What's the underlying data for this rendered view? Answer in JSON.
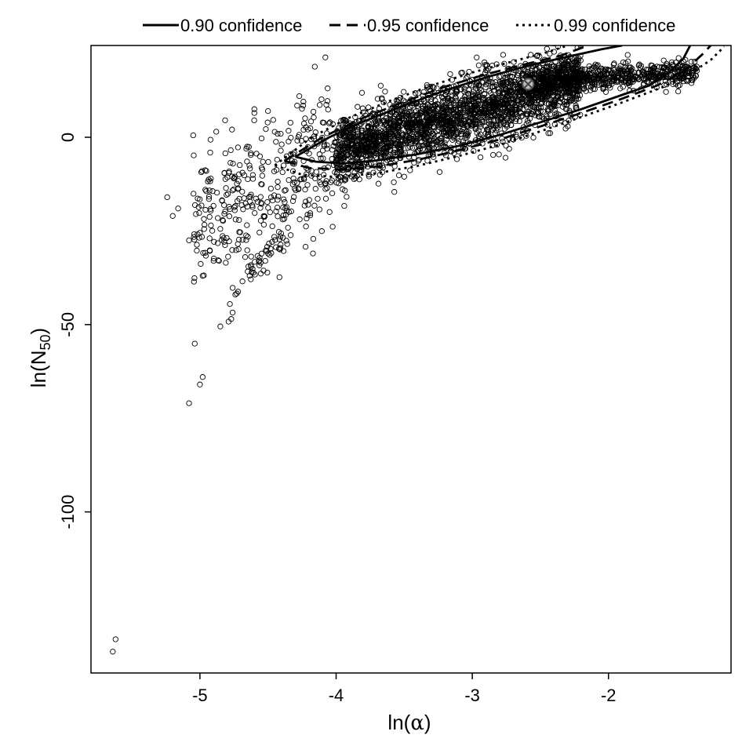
{
  "chart_data": {
    "type": "scatter",
    "title": "",
    "xlabel": "ln(α)",
    "ylabel": "ln(N50)",
    "xlabel_parts": {
      "prefix": "ln(",
      "symbol": "α",
      "suffix": ")"
    },
    "ylabel_parts": {
      "prefix": "ln(",
      "base": "N",
      "subscript": "50",
      "suffix": ")"
    },
    "xlim": [
      -5.8,
      -1.1
    ],
    "ylim": [
      -143,
      24.5
    ],
    "x_ticks": [
      -5,
      -4,
      -3,
      -2
    ],
    "x_tick_labels": [
      "-5",
      "-4",
      "-3",
      "-2"
    ],
    "y_ticks": [
      0,
      -50,
      -100
    ],
    "y_tick_labels": [
      "0",
      "-50",
      "-100"
    ],
    "grid": false,
    "legend_position": "top, outside plot area",
    "legend": [
      {
        "label": "0.90 confidence",
        "linestyle": "solid"
      },
      {
        "label": "0.95 confidence",
        "linestyle": "dashed"
      },
      {
        "label": "0.99 confidence",
        "linestyle": "dotted"
      }
    ],
    "marker_style": "open circle",
    "best_estimate": {
      "x": -2.59,
      "y": 14.2,
      "marker": "circle with cross"
    },
    "outlier_points": [
      {
        "x": -5.62,
        "y": -134
      },
      {
        "x": -5.64,
        "y": -137.3
      },
      {
        "x": -5.08,
        "y": -71
      },
      {
        "x": -5.0,
        "y": -66
      },
      {
        "x": -4.98,
        "y": -64
      },
      {
        "x": -4.85,
        "y": -50.5
      },
      {
        "x": -4.79,
        "y": -49.2
      },
      {
        "x": -4.77,
        "y": -48.5
      },
      {
        "x": -4.76,
        "y": -46.8
      },
      {
        "x": -4.78,
        "y": -44.5
      },
      {
        "x": -4.74,
        "y": -42
      },
      {
        "x": -4.73,
        "y": -41.7
      },
      {
        "x": -4.72,
        "y": -41.2
      },
      {
        "x": -4.76,
        "y": -40.2
      },
      {
        "x": -4.98,
        "y": -37
      },
      {
        "x": -4.62,
        "y": -36
      },
      {
        "x": -4.81,
        "y": -33.5
      },
      {
        "x": -4.86,
        "y": -33
      },
      {
        "x": -4.9,
        "y": -33
      },
      {
        "x": -4.52,
        "y": -33
      },
      {
        "x": -4.5,
        "y": -31
      },
      {
        "x": -4.17,
        "y": -31
      },
      {
        "x": -5.08,
        "y": -27.5
      },
      {
        "x": -5.0,
        "y": -25.5
      },
      {
        "x": -5.2,
        "y": -21
      },
      {
        "x": -5.24,
        "y": -16
      },
      {
        "x": -5.16,
        "y": -19
      },
      {
        "x": -4.88,
        "y": 1.5
      },
      {
        "x": -4.6,
        "y": 7.5
      },
      {
        "x": -4.6,
        "y": 6.5
      },
      {
        "x": -4.5,
        "y": 7
      },
      {
        "x": -4.24,
        "y": 9.5
      },
      {
        "x": -4.82,
        "y": -9.5
      },
      {
        "x": -4.92,
        "y": -11
      },
      {
        "x": -4.96,
        "y": -14
      }
    ],
    "clusters": [
      {
        "name": "sparse-left",
        "count": 360,
        "x_range": [
          -5.05,
          -4.0
        ],
        "y_center_at_x_min": -24,
        "y_center_at_x_max": -3,
        "y_spread": 9
      },
      {
        "name": "diagonal-streak",
        "count": 40,
        "x_range": [
          -4.65,
          -4.35
        ],
        "y_center_at_x_min": -36,
        "y_center_at_x_max": -26,
        "y_spread": 1.5
      },
      {
        "name": "main-band",
        "count": 2400,
        "x_range": [
          -4.0,
          -2.2
        ],
        "y_center_at_x_min": -4,
        "y_center_at_x_max": 15.5,
        "y_spread": 4.5
      },
      {
        "name": "tail-right",
        "count": 650,
        "x_range": [
          -2.6,
          -1.35
        ],
        "y_center_at_x_min": 14.5,
        "y_center_at_x_max": 17.5,
        "y_spread": 1.6
      }
    ],
    "confidence_regions": [
      {
        "label": "0.90 confidence",
        "linestyle": "solid",
        "upper": [
          [
            -4.3,
            -5.2
          ],
          [
            -4.05,
            0
          ],
          [
            -3.8,
            4.2
          ],
          [
            -3.5,
            8.5
          ],
          [
            -3.2,
            12.5
          ],
          [
            -2.9,
            16
          ],
          [
            -2.6,
            19
          ],
          [
            -2.3,
            21.5
          ],
          [
            -2.05,
            23.5
          ],
          [
            -1.9,
            24.5
          ]
        ],
        "lower": [
          [
            -4.3,
            -5.2
          ],
          [
            -4.15,
            -6.5
          ],
          [
            -3.95,
            -7
          ],
          [
            -3.7,
            -6.2
          ],
          [
            -3.4,
            -4.5
          ],
          [
            -3.1,
            -2.3
          ],
          [
            -2.8,
            0.6
          ],
          [
            -2.5,
            4
          ],
          [
            -2.2,
            7.5
          ],
          [
            -1.9,
            11.3
          ],
          [
            -1.7,
            13.8
          ],
          [
            -1.55,
            17.5
          ],
          [
            -1.45,
            21
          ],
          [
            -1.4,
            24.5
          ]
        ]
      },
      {
        "label": "0.95 confidence",
        "linestyle": "dashed",
        "upper": [
          [
            -4.38,
            -6.3
          ],
          [
            -4.1,
            0
          ],
          [
            -3.8,
            5.2
          ],
          [
            -3.5,
            9.5
          ],
          [
            -3.2,
            13.5
          ],
          [
            -2.9,
            16.8
          ],
          [
            -2.6,
            19.6
          ],
          [
            -2.35,
            21.8
          ],
          [
            -2.15,
            24.5
          ]
        ],
        "lower": [
          [
            -4.38,
            -6.3
          ],
          [
            -4.2,
            -8.2
          ],
          [
            -3.95,
            -8.6
          ],
          [
            -3.7,
            -7.8
          ],
          [
            -3.4,
            -6
          ],
          [
            -3.1,
            -3.5
          ],
          [
            -2.8,
            -0.6
          ],
          [
            -2.5,
            2.9
          ],
          [
            -2.2,
            6.5
          ],
          [
            -1.9,
            10.3
          ],
          [
            -1.65,
            13.7
          ],
          [
            -1.45,
            17.5
          ],
          [
            -1.3,
            22.5
          ],
          [
            -1.25,
            24.5
          ]
        ]
      },
      {
        "label": "0.99 confidence",
        "linestyle": "dotted",
        "upper": [
          [
            -4.45,
            -7.5
          ],
          [
            -4.18,
            0
          ],
          [
            -3.9,
            5.3
          ],
          [
            -3.6,
            9.8
          ],
          [
            -3.3,
            13.8
          ],
          [
            -3.0,
            17.3
          ],
          [
            -2.7,
            20.3
          ],
          [
            -2.45,
            22.7
          ],
          [
            -2.3,
            24.5
          ]
        ],
        "lower": [
          [
            -4.45,
            -7.5
          ],
          [
            -4.25,
            -10
          ],
          [
            -4.0,
            -10.6
          ],
          [
            -3.7,
            -9.6
          ],
          [
            -3.4,
            -7.6
          ],
          [
            -3.1,
            -5
          ],
          [
            -2.8,
            -2
          ],
          [
            -2.5,
            1.6
          ],
          [
            -2.2,
            5.4
          ],
          [
            -1.9,
            9.3
          ],
          [
            -1.6,
            13.4
          ],
          [
            -1.4,
            17
          ],
          [
            -1.25,
            20.6
          ],
          [
            -1.15,
            24.2
          ]
        ]
      }
    ]
  }
}
